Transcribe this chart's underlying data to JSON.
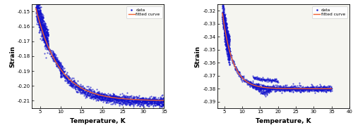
{
  "left": {
    "xlim": [
      3,
      35
    ],
    "ylim": [
      -0.215,
      -0.145
    ],
    "xticks": [
      5,
      10,
      15,
      20,
      25,
      30,
      35
    ],
    "yticks": [
      -0.21,
      -0.2,
      -0.19,
      -0.18,
      -0.17,
      -0.16,
      -0.15
    ],
    "ytick_labels": [
      "-0.21",
      "-0.20",
      "-0.19",
      "-0.18",
      "-0.17",
      "-0.16",
      "-0.15"
    ],
    "xlabel": "Temperature, K",
    "ylabel": "Strain",
    "legend_data": "data",
    "legend_fit": "fitted curve",
    "data_color": "#1010cc",
    "fit_color": "#f06030",
    "bg_color": "#f5f5f0"
  },
  "right": {
    "xlim": [
      3,
      40
    ],
    "ylim": [
      -0.395,
      -0.315
    ],
    "xticks": [
      5,
      10,
      15,
      20,
      25,
      30,
      35,
      40
    ],
    "yticks": [
      -0.39,
      -0.38,
      -0.37,
      -0.36,
      -0.35,
      -0.34,
      -0.33,
      -0.32
    ],
    "ytick_labels": [
      "-0.39",
      "-0.38",
      "-0.37",
      "-0.36",
      "-0.35",
      "-0.34",
      "-0.33",
      "-0.32"
    ],
    "xlabel": "Temperature, K",
    "ylabel": "Strain",
    "legend_data": "data",
    "legend_fit": "fitted curve",
    "data_color": "#1010cc",
    "fit_color": "#f06030",
    "bg_color": "#f5f5f0"
  }
}
